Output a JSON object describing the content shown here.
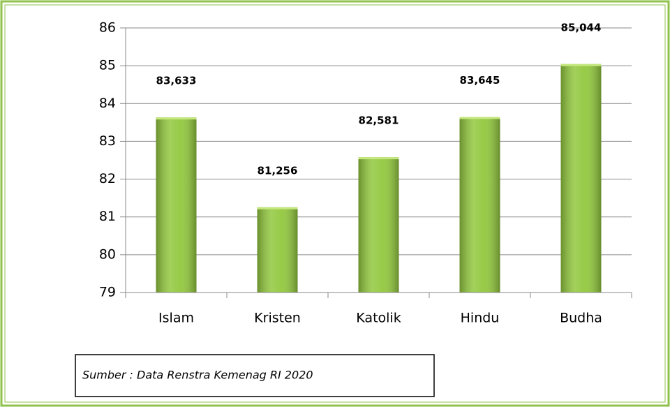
{
  "chart_data": {
    "type": "bar",
    "categories": [
      "Islam",
      "Kristen",
      "Katolik",
      "Hindu",
      "Budha"
    ],
    "values": [
      83.633,
      81.256,
      82.581,
      83.645,
      85.044
    ],
    "value_labels": [
      "83,633",
      "81,256",
      "82,581",
      "83,645",
      "85,044"
    ],
    "color": "#92c83e",
    "ylim": [
      79,
      86
    ],
    "yticks": [
      79,
      80,
      81,
      82,
      83,
      84,
      85,
      86
    ],
    "grid": true,
    "source": "Sumber : Data Renstra Kemenag RI 2020"
  }
}
